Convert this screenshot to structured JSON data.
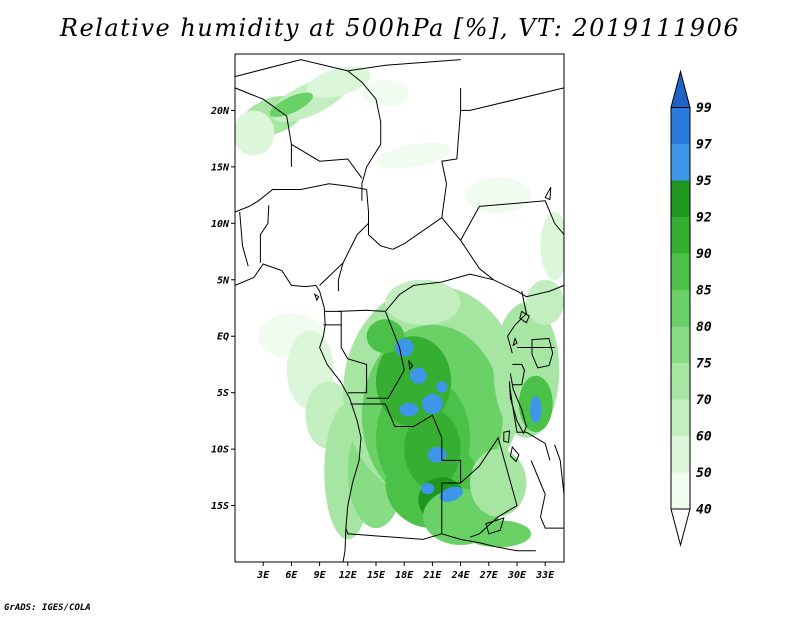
{
  "title": "Relative humidity at 500hPa [%], VT: 2019111906",
  "credit": "GrADS: IGES/COLA",
  "map": {
    "lon_range": [
      0,
      35
    ],
    "lat_range": [
      -20,
      25
    ],
    "lat_ticks": [
      {
        "value": 20,
        "label": "20N"
      },
      {
        "value": 15,
        "label": "15N"
      },
      {
        "value": 10,
        "label": "10N"
      },
      {
        "value": 5,
        "label": "5N"
      },
      {
        "value": 0,
        "label": "EQ"
      },
      {
        "value": -5,
        "label": "5S"
      },
      {
        "value": -10,
        "label": "10S"
      },
      {
        "value": -15,
        "label": "15S"
      }
    ],
    "lon_ticks": [
      {
        "value": 3,
        "label": "3E"
      },
      {
        "value": 6,
        "label": "6E"
      },
      {
        "value": 9,
        "label": "9E"
      },
      {
        "value": 12,
        "label": "12E"
      },
      {
        "value": 15,
        "label": "15E"
      },
      {
        "value": 18,
        "label": "18E"
      },
      {
        "value": 21,
        "label": "21E"
      },
      {
        "value": 24,
        "label": "24E"
      },
      {
        "value": 27,
        "label": "27E"
      },
      {
        "value": 30,
        "label": "30E"
      },
      {
        "value": 33,
        "label": "33E"
      }
    ]
  },
  "colorbar": {
    "levels": [
      {
        "label": "40",
        "color": "#f0fcf0"
      },
      {
        "label": "50",
        "color": "#dcf6da"
      },
      {
        "label": "60",
        "color": "#c3eec0"
      },
      {
        "label": "70",
        "color": "#a6e6a2"
      },
      {
        "label": "75",
        "color": "#88dc84"
      },
      {
        "label": "80",
        "color": "#69d165"
      },
      {
        "label": "85",
        "color": "#4cc148"
      },
      {
        "label": "90",
        "color": "#35ae32"
      },
      {
        "label": "92",
        "color": "#1f961e"
      },
      {
        "label": "95",
        "color": "#3e96ea"
      },
      {
        "label": "97",
        "color": "#2a7cdc"
      },
      {
        "label": "99",
        "color": "#1f63c6"
      }
    ],
    "below_color": "#ffffff",
    "above_color": "#1f63c6"
  },
  "fields": [
    {
      "lon": 4,
      "lat": 19.5,
      "rx": 3.5,
      "ry": 1.6,
      "rot": -20,
      "level": 3
    },
    {
      "lon": 8,
      "lat": 21,
      "rx": 4.5,
      "ry": 1.4,
      "rot": -25,
      "level": 2
    },
    {
      "lon": 11,
      "lat": 22.5,
      "rx": 3.5,
      "ry": 1.2,
      "rot": -15,
      "level": 1
    },
    {
      "lon": 2,
      "lat": 18,
      "rx": 2.2,
      "ry": 2.0,
      "rot": 0,
      "level": 1
    },
    {
      "lon": 6,
      "lat": 20.5,
      "rx": 2.5,
      "ry": 0.7,
      "rot": -25,
      "level": 5
    },
    {
      "lon": 16,
      "lat": 21.5,
      "rx": 2.5,
      "ry": 1.2,
      "rot": 0,
      "level": 0
    },
    {
      "lon": 19,
      "lat": 16,
      "rx": 4.0,
      "ry": 1.0,
      "rot": -10,
      "level": 0
    },
    {
      "lon": 28,
      "lat": 12.5,
      "rx": 3.5,
      "ry": 1.6,
      "rot": 0,
      "level": 0
    },
    {
      "lon": 34,
      "lat": 8,
      "rx": 1.5,
      "ry": 3.0,
      "rot": 0,
      "level": 1
    },
    {
      "lon": 6,
      "lat": 0,
      "rx": 3.5,
      "ry": 2.0,
      "rot": 0,
      "level": 0
    },
    {
      "lon": 8,
      "lat": -3,
      "rx": 2.5,
      "ry": 3.5,
      "rot": 0,
      "level": 1
    },
    {
      "lon": 10,
      "lat": -7,
      "rx": 2.5,
      "ry": 3.0,
      "rot": 0,
      "level": 2
    },
    {
      "lon": 12,
      "lat": -12,
      "rx": 2.5,
      "ry": 6.0,
      "rot": 0,
      "level": 3
    },
    {
      "lon": 15,
      "lat": -12,
      "rx": 3.0,
      "ry": 5.0,
      "rot": 0,
      "level": 4
    },
    {
      "lon": 21,
      "lat": -5,
      "rx": 9.5,
      "ry": 9.5,
      "rot": 0,
      "level": 3
    },
    {
      "lon": 21,
      "lat": -7,
      "rx": 7.5,
      "ry": 8.0,
      "rot": 0,
      "level": 5
    },
    {
      "lon": 20,
      "lat": -9,
      "rx": 5.0,
      "ry": 5.5,
      "rot": 0,
      "level": 6
    },
    {
      "lon": 21,
      "lat": -13,
      "rx": 5.0,
      "ry": 4.0,
      "rot": 0,
      "level": 6
    },
    {
      "lon": 19,
      "lat": -4,
      "rx": 4.0,
      "ry": 4.0,
      "rot": 0,
      "level": 7
    },
    {
      "lon": 21,
      "lat": -10,
      "rx": 3.0,
      "ry": 3.5,
      "rot": 0,
      "level": 7
    },
    {
      "lon": 22,
      "lat": -14.5,
      "rx": 2.5,
      "ry": 2.0,
      "rot": 0,
      "level": 8
    },
    {
      "lon": 24,
      "lat": -16,
      "rx": 4.0,
      "ry": 2.5,
      "rot": 0,
      "level": 5
    },
    {
      "lon": 28,
      "lat": -13,
      "rx": 3.0,
      "ry": 3.0,
      "rot": 0,
      "level": 3
    },
    {
      "lon": 31,
      "lat": -3,
      "rx": 3.5,
      "ry": 6.0,
      "rot": 0,
      "level": 3
    },
    {
      "lon": 32,
      "lat": -6,
      "rx": 1.8,
      "ry": 2.5,
      "rot": 0,
      "level": 6
    },
    {
      "lon": 33,
      "lat": 3,
      "rx": 2.0,
      "ry": 2.0,
      "rot": 0,
      "level": 2
    },
    {
      "lon": 28,
      "lat": -17.5,
      "rx": 3.5,
      "ry": 1.2,
      "rot": 0,
      "level": 5
    },
    {
      "lon": 20,
      "lat": 3,
      "rx": 4.0,
      "ry": 2.0,
      "rot": 0,
      "level": 2
    },
    {
      "lon": 16,
      "lat": 0,
      "rx": 2.0,
      "ry": 1.5,
      "rot": 0,
      "level": 6
    },
    {
      "lon": 18,
      "lat": -1,
      "rx": 1.0,
      "ry": 0.8,
      "rot": 0,
      "level": 9
    },
    {
      "lon": 19.5,
      "lat": -3.5,
      "rx": 0.9,
      "ry": 0.7,
      "rot": 0,
      "level": 9
    },
    {
      "lon": 21,
      "lat": -6,
      "rx": 1.1,
      "ry": 0.9,
      "rot": 0,
      "level": 9
    },
    {
      "lon": 18.5,
      "lat": -6.5,
      "rx": 1.0,
      "ry": 0.6,
      "rot": 0,
      "level": 9
    },
    {
      "lon": 21.5,
      "lat": -10.5,
      "rx": 1.0,
      "ry": 0.7,
      "rot": 0,
      "level": 9
    },
    {
      "lon": 23,
      "lat": -14,
      "rx": 1.3,
      "ry": 0.6,
      "rot": -20,
      "level": 9
    },
    {
      "lon": 20.5,
      "lat": -13.5,
      "rx": 0.7,
      "ry": 0.5,
      "rot": 0,
      "level": 9
    },
    {
      "lon": 32,
      "lat": -6.5,
      "rx": 0.6,
      "ry": 1.2,
      "rot": 0,
      "level": 9
    },
    {
      "lon": 22,
      "lat": -4.5,
      "rx": 0.6,
      "ry": 0.5,
      "rot": 0,
      "level": 9
    }
  ],
  "borders": [
    [
      [
        0,
        23
      ],
      [
        7,
        24.5
      ],
      [
        12,
        23.5
      ],
      [
        16,
        24
      ],
      [
        24,
        24.5
      ]
    ],
    [
      [
        12,
        23.5
      ],
      [
        13.5,
        22.5
      ],
      [
        15,
        21
      ],
      [
        15.5,
        19
      ],
      [
        15.5,
        17
      ],
      [
        14,
        15
      ],
      [
        13.5,
        13.5
      ],
      [
        13.5,
        12
      ]
    ],
    [
      [
        0,
        22
      ],
      [
        3,
        21
      ],
      [
        5.5,
        19.5
      ],
      [
        6,
        17
      ],
      [
        6,
        15
      ]
    ],
    [
      [
        6,
        17
      ],
      [
        9,
        15.5
      ],
      [
        12,
        15.7
      ],
      [
        13.5,
        14
      ]
    ],
    [
      [
        2.5,
        12
      ],
      [
        4,
        13
      ],
      [
        7,
        13
      ],
      [
        10,
        13.5
      ],
      [
        12,
        13.3
      ],
      [
        14,
        13
      ]
    ],
    [
      [
        2.7,
        6.5
      ],
      [
        2.7,
        9
      ],
      [
        3.5,
        10
      ],
      [
        3.6,
        11.6
      ]
    ],
    [
      [
        0.5,
        11
      ],
      [
        0.8,
        8
      ],
      [
        1.4,
        6.2
      ]
    ],
    [
      [
        0,
        11
      ],
      [
        1.5,
        11.5
      ],
      [
        2.5,
        12
      ]
    ],
    [
      [
        14,
        13
      ],
      [
        14.2,
        11
      ],
      [
        14.2,
        9
      ],
      [
        15.5,
        8
      ],
      [
        16.8,
        7.7
      ]
    ],
    [
      [
        9,
        4.5
      ],
      [
        11.5,
        6.5
      ],
      [
        13,
        9
      ],
      [
        14.2,
        10
      ]
    ],
    [
      [
        11.5,
        6.5
      ],
      [
        11,
        5
      ],
      [
        11,
        4
      ]
    ],
    [
      [
        11,
        2.2
      ],
      [
        14,
        2.3
      ],
      [
        16,
        2.2
      ],
      [
        17.5,
        3.7
      ],
      [
        19,
        4.5
      ],
      [
        22,
        4.8
      ],
      [
        25,
        5.5
      ],
      [
        27.5,
        5
      ]
    ],
    [
      [
        16.8,
        7.7
      ],
      [
        18,
        8.2
      ],
      [
        22,
        10.5
      ],
      [
        24,
        8.5
      ],
      [
        26,
        6
      ],
      [
        27.5,
        5
      ]
    ],
    [
      [
        22,
        10.5
      ],
      [
        22.5,
        13.5
      ],
      [
        22,
        15.5
      ],
      [
        23.6,
        15.7
      ],
      [
        24,
        20
      ],
      [
        24,
        22
      ]
    ],
    [
      [
        24,
        20
      ],
      [
        25,
        20
      ],
      [
        35,
        22
      ]
    ],
    [
      [
        24,
        8.5
      ],
      [
        26,
        11.5
      ],
      [
        33,
        12
      ],
      [
        34,
        10
      ],
      [
        35,
        9
      ]
    ],
    [
      [
        27.5,
        5
      ],
      [
        30,
        4
      ],
      [
        31,
        3.5
      ],
      [
        33.5,
        4
      ],
      [
        35,
        4.5
      ]
    ],
    [
      [
        9.5,
        2.2
      ],
      [
        11.3,
        2.2
      ],
      [
        11.3,
        1
      ],
      [
        9.4,
        1
      ]
    ],
    [
      [
        11.3,
        1
      ],
      [
        11.3,
        -1
      ],
      [
        12,
        -2
      ],
      [
        14,
        -2.5
      ],
      [
        14,
        -5
      ],
      [
        12,
        -5
      ]
    ],
    [
      [
        16,
        2.2
      ],
      [
        17.5,
        -1
      ],
      [
        18,
        -3
      ],
      [
        16.3,
        -5.5
      ],
      [
        14,
        -5.5
      ]
    ],
    [
      [
        12.3,
        -6
      ],
      [
        16,
        -6
      ],
      [
        17,
        -8
      ],
      [
        19,
        -8
      ],
      [
        21,
        -7
      ],
      [
        22,
        -9
      ],
      [
        22,
        -11
      ]
    ],
    [
      [
        22,
        -11
      ],
      [
        24,
        -11
      ],
      [
        24,
        -13
      ],
      [
        22,
        -13
      ],
      [
        22,
        -17.5
      ],
      [
        20,
        -18
      ],
      [
        12,
        -17.5
      ],
      [
        11.8,
        -17
      ]
    ],
    [
      [
        24,
        -13
      ],
      [
        26,
        -11.5
      ],
      [
        28,
        -9
      ],
      [
        29,
        -12
      ],
      [
        29.5,
        -13.5
      ],
      [
        30,
        -15
      ],
      [
        28,
        -16
      ],
      [
        26,
        -17.5
      ],
      [
        25,
        -17.8
      ]
    ],
    [
      [
        29.5,
        -1.5
      ],
      [
        29,
        0
      ],
      [
        29.8,
        1
      ],
      [
        31,
        2
      ],
      [
        30.5,
        4
      ]
    ],
    [
      [
        30,
        -1
      ],
      [
        31,
        -1
      ],
      [
        34,
        -1
      ]
    ],
    [
      [
        29.5,
        -2.5
      ],
      [
        30.5,
        -2.5
      ],
      [
        30.8,
        -3
      ],
      [
        30.5,
        -4.3
      ],
      [
        29.5,
        -4.3
      ]
    ],
    [
      [
        29.2,
        -4.3
      ],
      [
        29.5,
        -6
      ],
      [
        30,
        -8.5
      ],
      [
        31,
        -8.5
      ],
      [
        33,
        -9.5
      ],
      [
        33.5,
        -11
      ]
    ],
    [
      [
        31.5,
        -11
      ],
      [
        32.5,
        -13
      ],
      [
        33,
        -14
      ],
      [
        32.5,
        -16
      ],
      [
        33,
        -17
      ],
      [
        35,
        -17
      ]
    ],
    [
      [
        22,
        -17.5
      ],
      [
        24,
        -18
      ],
      [
        26,
        -18.3
      ],
      [
        28,
        -18.7
      ],
      [
        30,
        -19
      ],
      [
        32,
        -19
      ]
    ]
  ],
  "coast": [
    [
      [
        0,
        4.5
      ],
      [
        2,
        5.2
      ],
      [
        3,
        6.4
      ],
      [
        5,
        5.8
      ],
      [
        6,
        4.5
      ],
      [
        7.5,
        4.4
      ],
      [
        8.6,
        4.5
      ],
      [
        9,
        4
      ],
      [
        9.5,
        2.5
      ],
      [
        9.6,
        1
      ],
      [
        9.4,
        0
      ],
      [
        9,
        -1
      ],
      [
        9.8,
        -2.5
      ],
      [
        11.2,
        -4
      ],
      [
        12.2,
        -5.5
      ],
      [
        13,
        -7.5
      ],
      [
        13.4,
        -9
      ],
      [
        13.2,
        -11
      ],
      [
        12.5,
        -13
      ],
      [
        12,
        -15
      ],
      [
        11.8,
        -17
      ],
      [
        11.7,
        -19
      ],
      [
        11.5,
        -20
      ]
    ],
    [
      [
        29.3,
        -3.3
      ],
      [
        29.6,
        -4.7
      ],
      [
        30.5,
        -6.5
      ],
      [
        31,
        -8
      ],
      [
        30.7,
        -8.6
      ],
      [
        30,
        -7.5
      ],
      [
        29.3,
        -5.5
      ],
      [
        29.2,
        -4
      ]
    ],
    [
      [
        34,
        -9.6
      ],
      [
        34.6,
        -11
      ],
      [
        34.8,
        -12.5
      ],
      [
        35,
        -14
      ]
    ]
  ],
  "lakes": [
    [
      [
        31.6,
        -0.3
      ],
      [
        33.4,
        -0.2
      ],
      [
        33.8,
        -1.5
      ],
      [
        33.4,
        -2.6
      ],
      [
        32.2,
        -2.8
      ],
      [
        31.6,
        -1.6
      ]
    ],
    [
      [
        30.5,
        2.2
      ],
      [
        31.3,
        1.8
      ],
      [
        31,
        1.2
      ],
      [
        30.3,
        1.6
      ]
    ],
    [
      [
        29.8,
        -0.2
      ],
      [
        30,
        -0.6
      ],
      [
        29.6,
        -0.8
      ]
    ],
    [
      [
        28.6,
        -8.5
      ],
      [
        29.2,
        -8.4
      ],
      [
        29.1,
        -9.4
      ],
      [
        28.6,
        -9.3
      ]
    ],
    [
      [
        29.5,
        -9.8
      ],
      [
        30.2,
        -10.5
      ],
      [
        29.9,
        -11.1
      ],
      [
        29.3,
        -10.6
      ]
    ],
    [
      [
        26.7,
        -16.6
      ],
      [
        28.6,
        -16.1
      ],
      [
        28.2,
        -17.2
      ],
      [
        27,
        -17.5
      ]
    ],
    [
      [
        8.5,
        3.7
      ],
      [
        8.9,
        3.5
      ],
      [
        8.7,
        3.2
      ]
    ],
    [
      [
        18.5,
        -2.2
      ],
      [
        18.9,
        -2.6
      ],
      [
        18.6,
        -2.9
      ]
    ],
    [
      [
        33,
        12.3
      ],
      [
        33.6,
        13.2
      ],
      [
        33.5,
        12.1
      ]
    ]
  ]
}
